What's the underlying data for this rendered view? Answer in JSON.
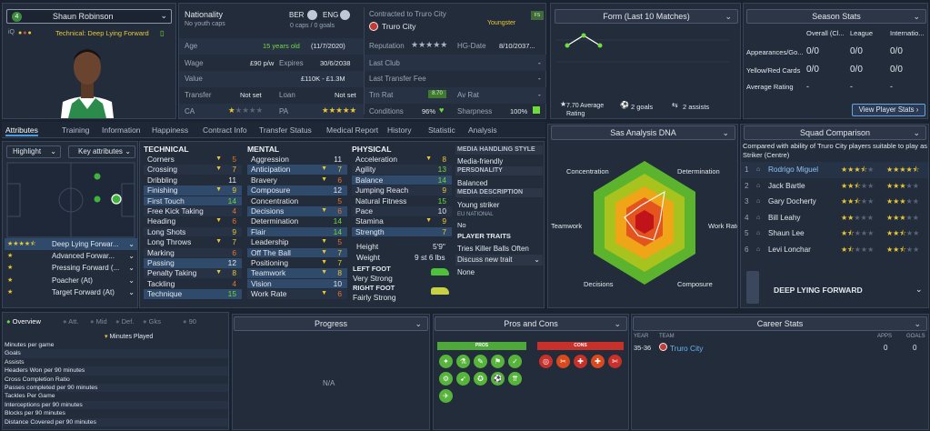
{
  "player": {
    "name": "Shaun Robinson",
    "number": "4",
    "iq_label": "iQ",
    "role": "Technical: Deep Lying Forward"
  },
  "info": {
    "nationality_label": "Nationality",
    "nationality_sub": "No youth caps",
    "nat1": "BER",
    "nat2": "ENG",
    "caps": "0 caps / 0 goals",
    "contracted_label": "Contracted to Truro City",
    "club": "Truro City",
    "club_status": "Youngster",
    "club_badge": "FS",
    "age_label": "Age",
    "age": "15 years old",
    "dob": "(11/7/2020)",
    "reputation_label": "Reputation",
    "hg_date_label": "HG-Date",
    "hg_date": "8/10/2037...",
    "wage_label": "Wage",
    "wage": "£90 p/w",
    "expires_label": "Expires",
    "expires": "30/6/2038",
    "last_club_label": "Last Club",
    "last_club": "-",
    "value_label": "Value",
    "value": "£110K - £1.3M",
    "last_fee_label": "Last Transfer Fee",
    "last_fee": "-",
    "transfer_label": "Transfer",
    "transfer": "Not set",
    "loan_label": "Loan",
    "loan": "Not set",
    "trn_rat_label": "Trn Rat",
    "trn_rat": "8.70",
    "av_rat_label": "Av Rat",
    "av_rat": "-",
    "ca_label": "CA",
    "pa_label": "PA",
    "conditions_label": "Conditions",
    "conditions": "96%",
    "sharpness_label": "Sharpness",
    "sharpness": "100%"
  },
  "form": {
    "title": "Form (Last 10 Matches)",
    "average": "7.70 Average Rating",
    "goals": "2 goals",
    "assists": "2 assists"
  },
  "season": {
    "title": "Season Stats",
    "col1": "Overall (Cl...",
    "col2": "League",
    "col3": "Internatio...",
    "rows": [
      {
        "label": "Appearances/Go...",
        "v1": "0/0",
        "v2": "0/0",
        "v3": "0/0"
      },
      {
        "label": "Yellow/Red Cards",
        "v1": "0/0",
        "v2": "0/0",
        "v3": "0/0"
      },
      {
        "label": "Average Rating",
        "v1": "-",
        "v2": "-",
        "v3": "-"
      }
    ],
    "button": "View Player Stats"
  },
  "tabs": [
    "Attributes",
    "Training",
    "Information",
    "Happiness",
    "Contract Info",
    "Transfer Status",
    "Medical Report",
    "History",
    "Statistic",
    "Analysis"
  ],
  "left": {
    "highlight": "Highlight",
    "key_attr": "Key attributes",
    "roles": [
      {
        "label": "Deep Lying Forwar...",
        "stars": "4.5"
      },
      {
        "label": "Advanced Forwar...",
        "stars": "1"
      },
      {
        "label": "Pressing Forward (...",
        "stars": "1"
      },
      {
        "label": "Poacher (At)",
        "stars": "1"
      },
      {
        "label": "Target Forward (At)",
        "stars": "1"
      }
    ]
  },
  "technical": {
    "title": "TECHNICAL",
    "rows": [
      {
        "label": "Corners",
        "v": "5",
        "arr": "▼",
        "hl": false
      },
      {
        "label": "Crossing",
        "v": "7",
        "arr": "▼",
        "hl": false
      },
      {
        "label": "Dribbling",
        "v": "11",
        "arr": "",
        "hl": false
      },
      {
        "label": "Finishing",
        "v": "9",
        "arr": "▼",
        "hl": true
      },
      {
        "label": "First Touch",
        "v": "14",
        "arr": "",
        "hl": true
      },
      {
        "label": "Free Kick Taking",
        "v": "4",
        "arr": "",
        "hl": false
      },
      {
        "label": "Heading",
        "v": "6",
        "arr": "▼",
        "hl": false
      },
      {
        "label": "Long Shots",
        "v": "9",
        "arr": "",
        "hl": false
      },
      {
        "label": "Long Throws",
        "v": "7",
        "arr": "▼",
        "hl": false
      },
      {
        "label": "Marking",
        "v": "6",
        "arr": "",
        "hl": false
      },
      {
        "label": "Passing",
        "v": "12",
        "arr": "",
        "hl": true
      },
      {
        "label": "Penalty Taking",
        "v": "8",
        "arr": "▼",
        "hl": false
      },
      {
        "label": "Tackling",
        "v": "4",
        "arr": "",
        "hl": false
      },
      {
        "label": "Technique",
        "v": "15",
        "arr": "",
        "hl": true
      }
    ]
  },
  "mental": {
    "title": "MENTAL",
    "rows": [
      {
        "label": "Aggression",
        "v": "11",
        "arr": "",
        "hl": false
      },
      {
        "label": "Anticipation",
        "v": "7",
        "arr": "▼",
        "hl": true
      },
      {
        "label": "Bravery",
        "v": "6",
        "arr": "▼",
        "hl": false
      },
      {
        "label": "Composure",
        "v": "12",
        "arr": "",
        "hl": true
      },
      {
        "label": "Concentration",
        "v": "5",
        "arr": "",
        "hl": false
      },
      {
        "label": "Decisions",
        "v": "6",
        "arr": "▼",
        "hl": true
      },
      {
        "label": "Determination",
        "v": "14",
        "arr": "",
        "hl": false
      },
      {
        "label": "Flair",
        "v": "14",
        "arr": "",
        "hl": true
      },
      {
        "label": "Leadership",
        "v": "5",
        "arr": "▼",
        "hl": false
      },
      {
        "label": "Off The Ball",
        "v": "7",
        "arr": "▼",
        "hl": true
      },
      {
        "label": "Positioning",
        "v": "7",
        "arr": "▼",
        "hl": false
      },
      {
        "label": "Teamwork",
        "v": "8",
        "arr": "▼",
        "hl": true
      },
      {
        "label": "Vision",
        "v": "10",
        "arr": "",
        "hl": true
      },
      {
        "label": "Work Rate",
        "v": "6",
        "arr": "▼",
        "hl": false
      }
    ]
  },
  "physical": {
    "title": "PHYSICAL",
    "rows": [
      {
        "label": "Acceleration",
        "v": "8",
        "arr": "▼",
        "hl": false
      },
      {
        "label": "Agility",
        "v": "13",
        "arr": "",
        "hl": false
      },
      {
        "label": "Balance",
        "v": "14",
        "arr": "",
        "hl": true
      },
      {
        "label": "Jumping Reach",
        "v": "9",
        "arr": "",
        "hl": false
      },
      {
        "label": "Natural Fitness",
        "v": "15",
        "arr": "",
        "hl": false
      },
      {
        "label": "Pace",
        "v": "10",
        "arr": "",
        "hl": false
      },
      {
        "label": "Stamina",
        "v": "9",
        "arr": "▼",
        "hl": false
      },
      {
        "label": "Strength",
        "v": "7",
        "arr": "",
        "hl": true
      }
    ],
    "height_label": "Height",
    "height": "5'9\"",
    "weight_label": "Weight",
    "weight": "9 st 6 lbs",
    "left_foot_label": "LEFT FOOT",
    "left_foot": "Very Strong",
    "right_foot_label": "RIGHT FOOT",
    "right_foot": "Fairly Strong"
  },
  "media": {
    "style_label": "MEDIA HANDLING STYLE",
    "style": "Media-friendly",
    "personality_label": "PERSONALITY",
    "personality": "Balanced",
    "description_label": "MEDIA DESCRIPTION",
    "description": "Young striker",
    "eu_label": "EU NATIONAL",
    "eu": "No",
    "traits_label": "PLAYER TRAITS",
    "traits": [
      "Tries Killer Balls Often",
      "Discuss new trait",
      "None"
    ]
  },
  "dna": {
    "title": "Sas Analysis DNA",
    "labels": [
      "Concentration",
      "Determination",
      "Teamwork",
      "Work Rate",
      "Decisions",
      "Composure"
    ]
  },
  "squad": {
    "title": "Squad Comparison",
    "desc": "Compared with ability of Truro City players suitable to play as Striker (Centre)",
    "rows": [
      {
        "n": "1",
        "name": "Rodrigo Miguel",
        "ca": "3.5",
        "pa": "4.5"
      },
      {
        "n": "2",
        "name": "Jack Bartle",
        "ca": "2.5",
        "pa": "3"
      },
      {
        "n": "3",
        "name": "Gary Docherty",
        "ca": "2.5",
        "pa": "3"
      },
      {
        "n": "4",
        "name": "Bill Leahy",
        "ca": "2",
        "pa": "3"
      },
      {
        "n": "5",
        "name": "Shaun Lee",
        "ca": "1.5",
        "pa": "2.5"
      },
      {
        "n": "6",
        "name": "Levi Lonchar",
        "ca": "1.5",
        "pa": "2.5"
      }
    ],
    "role": "DEEP LYING FORWARD"
  },
  "bottom": {
    "tabs": [
      "Overview",
      "Att.",
      "Mid",
      "Def.",
      "Gks",
      "90"
    ],
    "minutes_played": "Minutes Played",
    "stats": [
      "Minutes per game",
      "Goals",
      "Assists",
      "Headers Won per 90 minutes",
      "Cross Completion Ratio",
      "Passes completed per 90 minutes",
      "Tackles Per Game",
      "Interceptions per 90 minutes",
      "Blocks per 90 minutes",
      "Distance Covered per 90 minutes"
    ],
    "progress_title": "Progress",
    "progress_na": "N/A",
    "pros_cons_title": "Pros and Cons",
    "pros_label": "PROS",
    "cons_label": "CONS",
    "career_title": "Career Stats",
    "career_year_label": "YEAR",
    "career_team_label": "TEAM",
    "career_apps_label": "APPS",
    "career_goals_label": "GOALS",
    "career_rows": [
      {
        "year": "35-36",
        "team": "Truro City",
        "apps": "0",
        "goals": "0"
      }
    ]
  }
}
